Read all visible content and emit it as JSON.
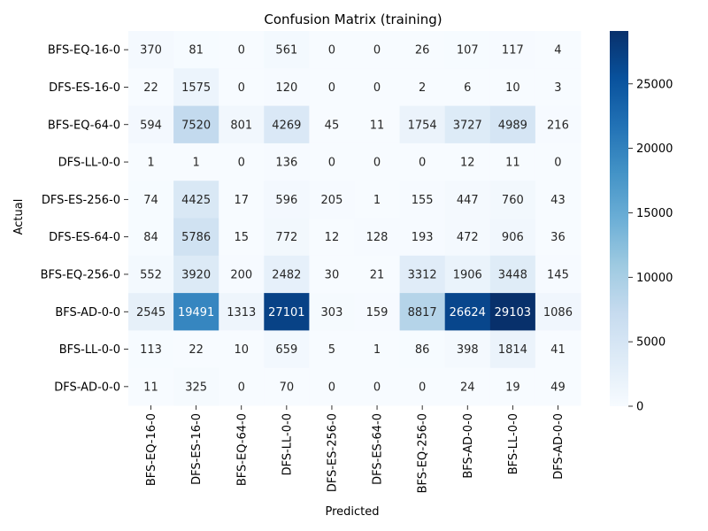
{
  "chart_data": {
    "type": "heatmap",
    "title": "Confusion Matrix (training)",
    "xlabel": "Predicted",
    "ylabel": "Actual",
    "x_categories": [
      "BFS-EQ-16-0",
      "DFS-ES-16-0",
      "BFS-EQ-64-0",
      "DFS-LL-0-0",
      "DFS-ES-256-0",
      "DFS-ES-64-0",
      "BFS-EQ-256-0",
      "BFS-AD-0-0",
      "BFS-LL-0-0",
      "DFS-AD-0-0"
    ],
    "y_categories": [
      "BFS-EQ-16-0",
      "DFS-ES-16-0",
      "BFS-EQ-64-0",
      "DFS-LL-0-0",
      "DFS-ES-256-0",
      "DFS-ES-64-0",
      "BFS-EQ-256-0",
      "BFS-AD-0-0",
      "BFS-LL-0-0",
      "DFS-AD-0-0"
    ],
    "values": [
      [
        370,
        81,
        0,
        561,
        0,
        0,
        26,
        107,
        117,
        4
      ],
      [
        22,
        1575,
        0,
        120,
        0,
        0,
        2,
        6,
        10,
        3
      ],
      [
        594,
        7520,
        801,
        4269,
        45,
        11,
        1754,
        3727,
        4989,
        216
      ],
      [
        1,
        1,
        0,
        136,
        0,
        0,
        0,
        12,
        11,
        0
      ],
      [
        74,
        4425,
        17,
        596,
        205,
        1,
        155,
        447,
        760,
        43
      ],
      [
        84,
        5786,
        15,
        772,
        12,
        128,
        193,
        472,
        906,
        36
      ],
      [
        552,
        3920,
        200,
        2482,
        30,
        21,
        3312,
        1906,
        3448,
        145
      ],
      [
        2545,
        19491,
        1313,
        27101,
        303,
        159,
        8817,
        26624,
        29103,
        1086
      ],
      [
        113,
        22,
        10,
        659,
        5,
        1,
        86,
        398,
        1814,
        41
      ],
      [
        11,
        325,
        0,
        70,
        0,
        0,
        0,
        24,
        19,
        49
      ]
    ],
    "colormap": "Blues",
    "colormap_stops": [
      "#f7fbff",
      "#deebf7",
      "#c6dbef",
      "#9ecae1",
      "#6baed6",
      "#4292c6",
      "#2171b5",
      "#08519c",
      "#08306b"
    ],
    "vmin": 0,
    "vmax": 29103,
    "colorbar_ticks": [
      0,
      5000,
      10000,
      15000,
      20000,
      25000
    ],
    "grid": false,
    "legend": "colorbar-right"
  }
}
